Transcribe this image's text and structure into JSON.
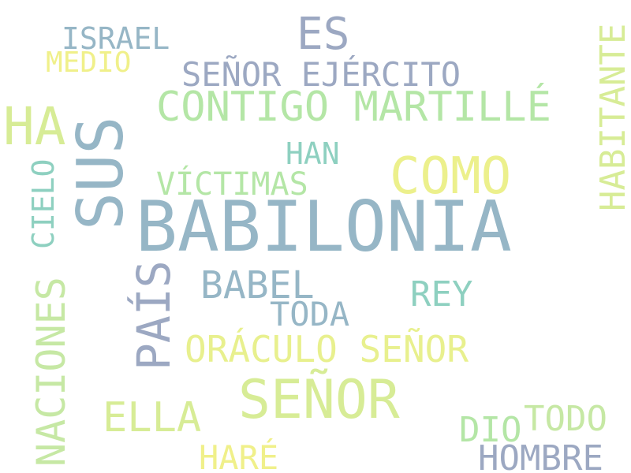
{
  "words": [
    {
      "text": "BABILONIA",
      "color": "#96b6c6"
    },
    {
      "text": "SUS",
      "color": "#96b6c6"
    },
    {
      "text": "SEÑOR",
      "color": "#d7ec96"
    },
    {
      "text": "COMO",
      "color": "#ecf08c"
    },
    {
      "text": "HA",
      "color": "#d7ec96"
    },
    {
      "text": "ES",
      "color": "#9ca8c2"
    },
    {
      "text": "CONTIGO MARTILLÉ",
      "color": "#b4e6a6"
    },
    {
      "text": "NACIONES",
      "color": "#c6e8a4"
    },
    {
      "text": "PAÍS",
      "color": "#9ca8c2"
    },
    {
      "text": "ORÁCULO SEÑOR",
      "color": "#e8f08e"
    },
    {
      "text": "BABEL",
      "color": "#96b6c6"
    },
    {
      "text": "HABITANTE",
      "color": "#d7ec96"
    },
    {
      "text": "SEÑOR EJÉRCITO",
      "color": "#9ca8c2"
    },
    {
      "text": "ELLA",
      "color": "#d7ec96"
    },
    {
      "text": "HOMBRE",
      "color": "#9ca8c2"
    },
    {
      "text": "TODO",
      "color": "#c6e8a4"
    },
    {
      "text": "REY",
      "color": "#8ed0c0"
    },
    {
      "text": "TODA",
      "color": "#96b6c6"
    },
    {
      "text": "CIELO",
      "color": "#8ed0c0"
    },
    {
      "text": "ISRAEL",
      "color": "#96b6c6"
    },
    {
      "text": "HAN",
      "color": "#8ed0c0"
    },
    {
      "text": "VÍCTIMAS",
      "color": "#b4e6a6"
    },
    {
      "text": "MEDIO",
      "color": "#f0f08a"
    },
    {
      "text": "HARÉ",
      "color": "#f0f08a"
    },
    {
      "text": "DIO",
      "color": "#b4e6a6"
    }
  ]
}
